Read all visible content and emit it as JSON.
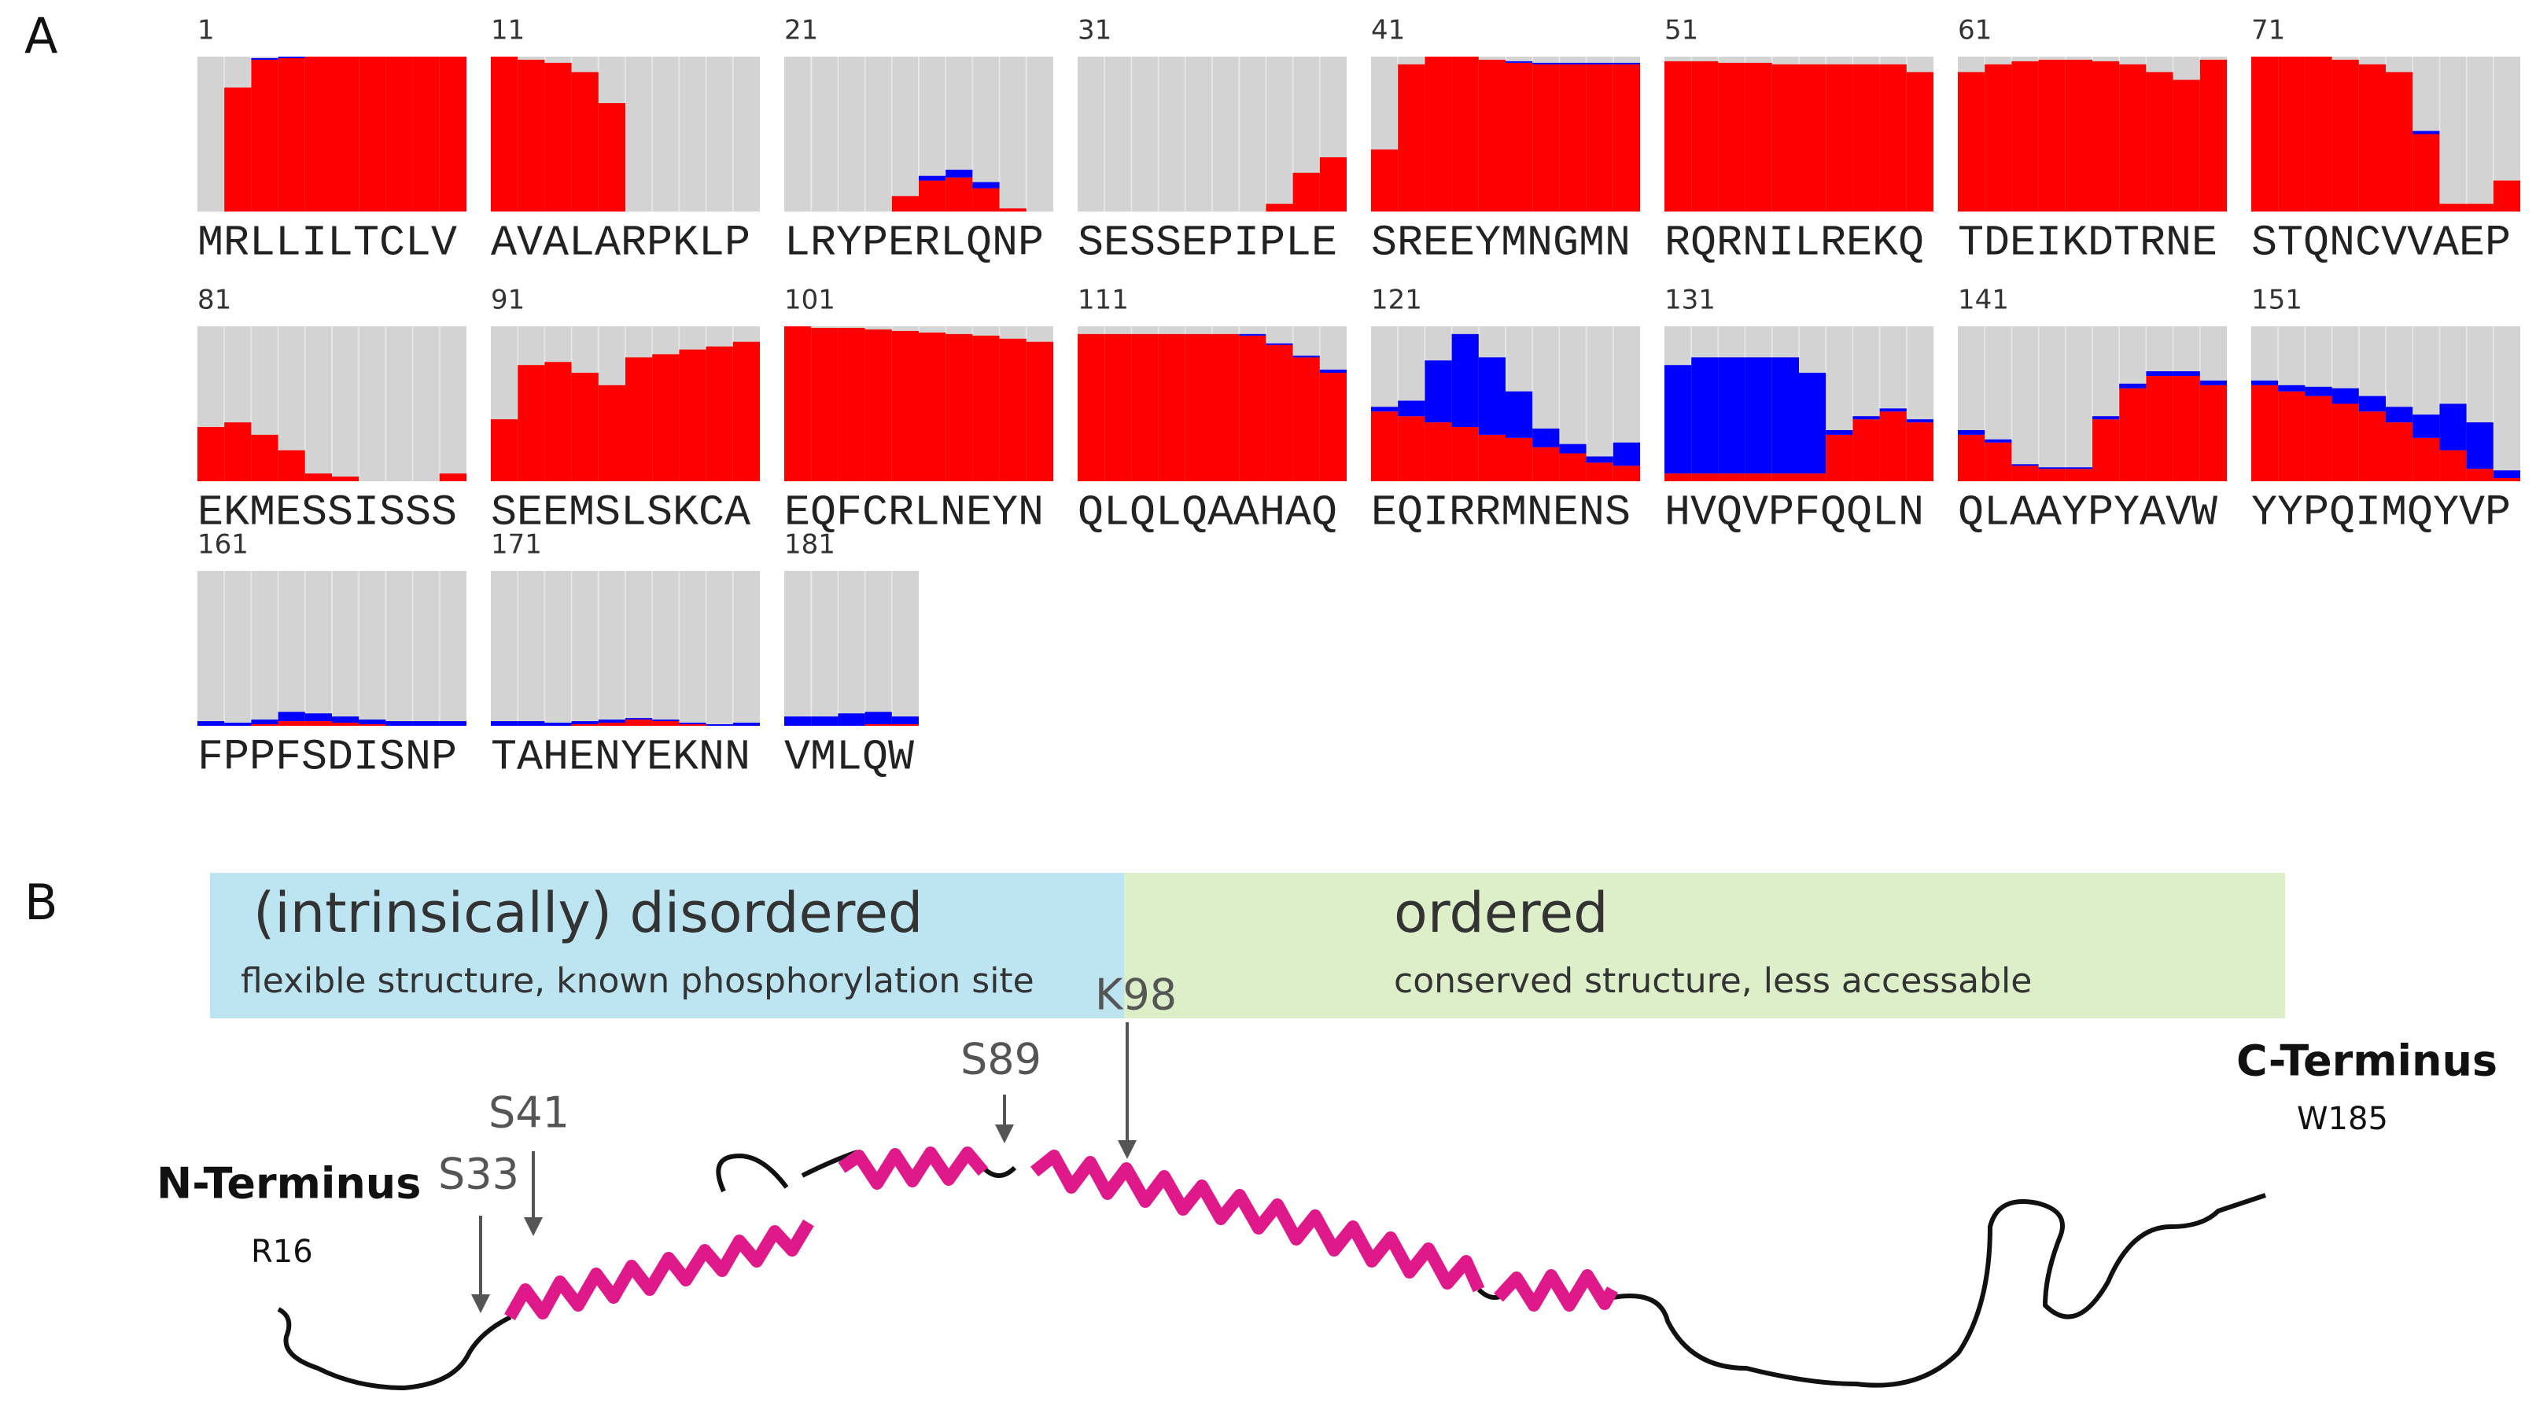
{
  "panel_a": {
    "label": "A",
    "blocks": [
      {
        "start": 1,
        "sequence": "MRLLILTCLV",
        "helix": [
          0,
          80,
          98,
          99,
          100,
          100,
          100,
          100,
          100,
          100
        ],
        "strand": [
          0,
          0,
          1,
          1,
          0,
          0,
          0,
          0,
          0,
          0
        ]
      },
      {
        "start": 11,
        "sequence": "AVALARPKLP",
        "helix": [
          100,
          98,
          96,
          90,
          70,
          0,
          0,
          0,
          0,
          0
        ],
        "strand": [
          0,
          0,
          0,
          0,
          0,
          0,
          0,
          0,
          0,
          0
        ]
      },
      {
        "start": 21,
        "sequence": "LRYPERLQNP",
        "helix": [
          0,
          0,
          0,
          0,
          10,
          20,
          22,
          15,
          2,
          0
        ],
        "strand": [
          0,
          0,
          0,
          0,
          0,
          3,
          5,
          4,
          0,
          0
        ]
      },
      {
        "start": 31,
        "sequence": "SESSEPIPLE",
        "helix": [
          0,
          0,
          0,
          0,
          0,
          0,
          0,
          5,
          25,
          35
        ],
        "strand": [
          0,
          0,
          0,
          0,
          0,
          0,
          0,
          0,
          0,
          0
        ]
      },
      {
        "start": 41,
        "sequence": "SREEYMNGMN",
        "helix": [
          40,
          95,
          100,
          100,
          98,
          96,
          95,
          95,
          95,
          95
        ],
        "strand": [
          0,
          0,
          0,
          0,
          0,
          1,
          1,
          1,
          1,
          1
        ]
      },
      {
        "start": 51,
        "sequence": "RQRNILREKQ",
        "helix": [
          97,
          97,
          96,
          96,
          95,
          95,
          95,
          95,
          95,
          90
        ],
        "strand": [
          0,
          0,
          0,
          0,
          0,
          0,
          0,
          0,
          0,
          0
        ]
      },
      {
        "start": 61,
        "sequence": "TDEIKDTRNE",
        "helix": [
          90,
          95,
          97,
          98,
          98,
          97,
          95,
          90,
          85,
          98
        ],
        "strand": [
          0,
          0,
          0,
          0,
          0,
          0,
          0,
          0,
          0,
          0
        ]
      },
      {
        "start": 71,
        "sequence": "STQNCVVAEP",
        "helix": [
          100,
          100,
          100,
          98,
          95,
          90,
          50,
          5,
          5,
          20
        ],
        "strand": [
          0,
          0,
          0,
          0,
          0,
          0,
          2,
          0,
          0,
          0
        ]
      },
      {
        "start": 81,
        "sequence": "EKMESSISSS",
        "helix": [
          35,
          38,
          30,
          20,
          5,
          3,
          0,
          0,
          0,
          5
        ],
        "strand": [
          0,
          0,
          0,
          0,
          0,
          0,
          0,
          0,
          0,
          0
        ]
      },
      {
        "start": 91,
        "sequence": "SEEMSLSKCA",
        "helix": [
          40,
          75,
          77,
          70,
          62,
          80,
          82,
          85,
          87,
          90
        ],
        "strand": [
          0,
          0,
          0,
          0,
          0,
          0,
          0,
          0,
          0,
          0
        ]
      },
      {
        "start": 101,
        "sequence": "EQFCRLNEYN",
        "helix": [
          100,
          99,
          99,
          98,
          97,
          96,
          95,
          94,
          92,
          90
        ],
        "strand": [
          0,
          0,
          0,
          0,
          0,
          0,
          0,
          0,
          0,
          0
        ]
      },
      {
        "start": 111,
        "sequence": "QLQLQAAHAQ",
        "helix": [
          95,
          95,
          95,
          95,
          95,
          95,
          94,
          88,
          80,
          70
        ],
        "strand": [
          0,
          0,
          0,
          0,
          0,
          0,
          1,
          1,
          1,
          2
        ]
      },
      {
        "start": 121,
        "sequence": "EQIRRMNENS",
        "helix": [
          45,
          42,
          38,
          35,
          30,
          28,
          22,
          18,
          12,
          10
        ],
        "strand": [
          3,
          10,
          40,
          60,
          50,
          30,
          12,
          6,
          4,
          15
        ]
      },
      {
        "start": 131,
        "sequence": "HVQVPFQQLN",
        "helix": [
          5,
          5,
          5,
          5,
          5,
          5,
          30,
          40,
          45,
          38
        ],
        "strand": [
          70,
          75,
          75,
          75,
          75,
          65,
          3,
          2,
          2,
          2
        ]
      },
      {
        "start": 141,
        "sequence": "QLAAYPYAVW",
        "helix": [
          30,
          25,
          10,
          8,
          8,
          40,
          60,
          68,
          68,
          62
        ],
        "strand": [
          3,
          2,
          1,
          1,
          1,
          2,
          3,
          3,
          3,
          3
        ]
      },
      {
        "start": 151,
        "sequence": "YYPQIMQYVP",
        "helix": [
          62,
          58,
          55,
          50,
          45,
          38,
          28,
          20,
          8,
          2
        ],
        "strand": [
          3,
          4,
          6,
          10,
          10,
          10,
          15,
          30,
          30,
          5
        ]
      },
      {
        "start": 161,
        "sequence": "FPPFSDISNP",
        "helix": [
          0,
          0,
          1,
          3,
          3,
          2,
          1,
          0,
          0,
          0
        ],
        "strand": [
          3,
          2,
          3,
          6,
          5,
          4,
          3,
          3,
          3,
          3
        ]
      },
      {
        "start": 171,
        "sequence": "TAHENYEKNN",
        "helix": [
          0,
          0,
          0,
          1,
          2,
          4,
          3,
          1,
          0,
          0
        ],
        "strand": [
          3,
          3,
          2,
          2,
          2,
          1,
          1,
          1,
          1,
          2
        ]
      },
      {
        "start": 181,
        "sequence": "VMLQW",
        "helix": [
          0,
          0,
          0,
          1,
          1
        ],
        "strand": [
          6,
          6,
          8,
          8,
          5
        ]
      }
    ]
  },
  "panel_b": {
    "label": "B",
    "disordered": {
      "title": "(intrinsically) disordered",
      "subtitle": "flexible structure, known phosphorylation site"
    },
    "ordered": {
      "title": "ordered",
      "subtitle": "conserved structure, less accessable"
    },
    "sites": [
      "K98",
      "S89",
      "S41",
      "S33"
    ],
    "n_terminus": {
      "label": "N-Terminus",
      "residue": "R16"
    },
    "c_terminus": {
      "label": "C-Terminus",
      "residue": "W185"
    }
  }
}
